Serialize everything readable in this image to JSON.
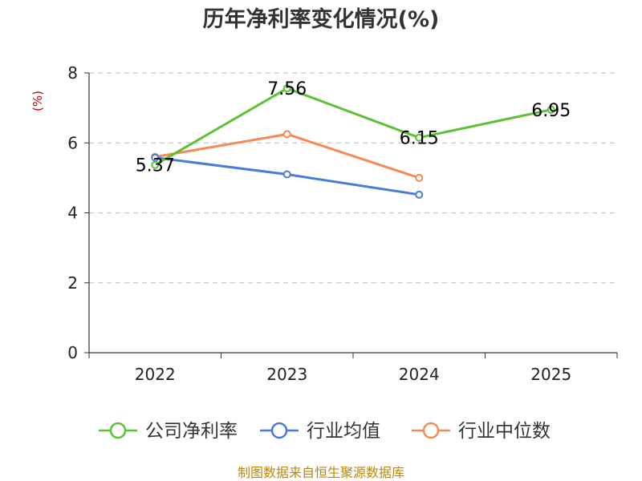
{
  "chart_data": {
    "type": "line",
    "title": "历年净利率变化情况(%)",
    "ylabel": "(%)",
    "categories": [
      "2022",
      "2023",
      "2024",
      "2025"
    ],
    "ylim": [
      0,
      8
    ],
    "yticks": [
      "0",
      "2",
      "4",
      "6",
      "8"
    ],
    "grid": true,
    "legend_position": "bottom",
    "series": [
      {
        "name": "公司净利率",
        "color": "#5bc236",
        "values": [
          5.37,
          7.56,
          6.15,
          6.95
        ],
        "labels": [
          "5.37",
          "7.56",
          "6.15",
          "6.95"
        ]
      },
      {
        "name": "行业均值",
        "color": "#4a7bdb",
        "values": [
          5.58,
          5.1,
          4.52,
          null
        ]
      },
      {
        "name": "行业中位数",
        "color": "#f58a54",
        "values": [
          5.6,
          6.25,
          5.0,
          null
        ]
      }
    ]
  },
  "source": "制图数据来自恒生聚源数据库"
}
